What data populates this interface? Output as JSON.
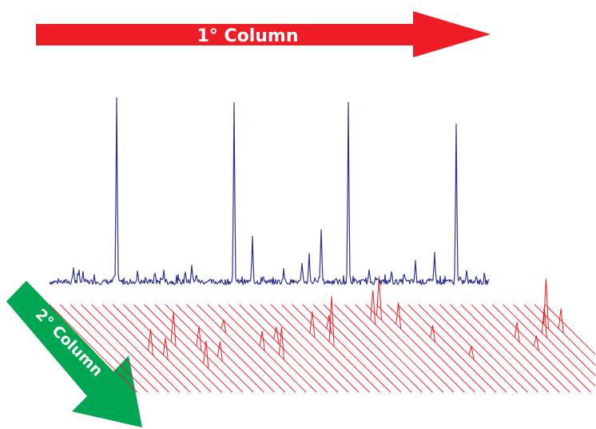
{
  "primary_arrow": {
    "label": "1° Column",
    "color": "#ee1c25"
  },
  "secondary_arrow": {
    "label": "2° Column",
    "color": "#00a651"
  },
  "chromatogram": {
    "color": "#2e3192"
  },
  "modulation_lines": {
    "color": "#ee1c25"
  }
}
